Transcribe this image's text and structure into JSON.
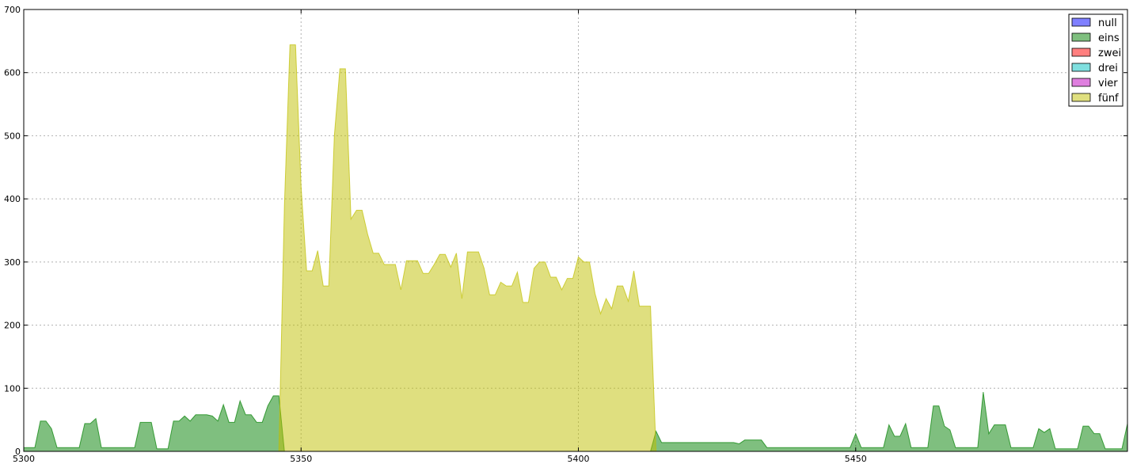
{
  "chart_data": {
    "type": "area",
    "title": "",
    "xlabel": "",
    "ylabel": "",
    "xlim": [
      5300,
      5499
    ],
    "ylim": [
      0,
      700
    ],
    "x_ticks": [
      "5300",
      "5350",
      "5400",
      "5450"
    ],
    "y_ticks": [
      "0",
      "100",
      "200",
      "300",
      "400",
      "500",
      "600",
      "700"
    ],
    "grid": true,
    "legend_position": "top-right",
    "series": [
      {
        "name": "null",
        "color": "#0000ff",
        "values": [
          [
            5300,
            0
          ],
          [
            5499,
            0
          ]
        ]
      },
      {
        "name": "eins",
        "color": "#008000",
        "values": [
          [
            5300,
            6
          ],
          [
            5302,
            6
          ],
          [
            5303,
            48
          ],
          [
            5304,
            48
          ],
          [
            5305,
            36
          ],
          [
            5306,
            6
          ],
          [
            5310,
            6
          ],
          [
            5311,
            44
          ],
          [
            5312,
            44
          ],
          [
            5313,
            52
          ],
          [
            5314,
            6
          ],
          [
            5320,
            6
          ],
          [
            5321,
            46
          ],
          [
            5323,
            46
          ],
          [
            5324,
            4
          ],
          [
            5326,
            4
          ],
          [
            5327,
            48
          ],
          [
            5328,
            48
          ],
          [
            5329,
            56
          ],
          [
            5330,
            48
          ],
          [
            5331,
            58
          ],
          [
            5333,
            58
          ],
          [
            5334,
            56
          ],
          [
            5335,
            48
          ],
          [
            5336,
            74
          ],
          [
            5337,
            46
          ],
          [
            5338,
            46
          ],
          [
            5339,
            80
          ],
          [
            5340,
            58
          ],
          [
            5341,
            58
          ],
          [
            5342,
            46
          ],
          [
            5343,
            46
          ],
          [
            5344,
            72
          ],
          [
            5345,
            88
          ],
          [
            5346,
            88
          ],
          [
            5347,
            0
          ],
          [
            5413,
            0
          ],
          [
            5414,
            32
          ],
          [
            5415,
            14
          ],
          [
            5428,
            14
          ],
          [
            5429,
            12
          ],
          [
            5430,
            18
          ],
          [
            5433,
            18
          ],
          [
            5434,
            6
          ],
          [
            5449,
            6
          ],
          [
            5450,
            28
          ],
          [
            5451,
            6
          ],
          [
            5455,
            6
          ],
          [
            5456,
            42
          ],
          [
            5457,
            24
          ],
          [
            5458,
            24
          ],
          [
            5459,
            44
          ],
          [
            5460,
            6
          ],
          [
            5463,
            6
          ],
          [
            5464,
            72
          ],
          [
            5465,
            72
          ],
          [
            5466,
            40
          ],
          [
            5467,
            34
          ],
          [
            5468,
            6
          ],
          [
            5472,
            6
          ],
          [
            5473,
            94
          ],
          [
            5474,
            28
          ],
          [
            5475,
            42
          ],
          [
            5477,
            42
          ],
          [
            5478,
            6
          ],
          [
            5482,
            6
          ],
          [
            5483,
            36
          ],
          [
            5484,
            30
          ],
          [
            5485,
            36
          ],
          [
            5486,
            4
          ],
          [
            5490,
            4
          ],
          [
            5491,
            40
          ],
          [
            5492,
            40
          ],
          [
            5493,
            28
          ],
          [
            5494,
            28
          ],
          [
            5495,
            4
          ],
          [
            5498,
            4
          ],
          [
            5499,
            44
          ]
        ]
      },
      {
        "name": "zwei",
        "color": "#ff0000",
        "values": [
          [
            5300,
            0
          ],
          [
            5499,
            0
          ]
        ]
      },
      {
        "name": "drei",
        "color": "#00bfbf",
        "values": [
          [
            5300,
            0
          ],
          [
            5499,
            0
          ]
        ]
      },
      {
        "name": "vier",
        "color": "#bf00bf",
        "values": [
          [
            5300,
            0
          ],
          [
            5499,
            0
          ]
        ]
      },
      {
        "name": "fünf",
        "color": "#bfbf00",
        "values": [
          [
            5346,
            0
          ],
          [
            5347,
            390
          ],
          [
            5348,
            644
          ],
          [
            5349,
            644
          ],
          [
            5350,
            420
          ],
          [
            5351,
            286
          ],
          [
            5352,
            286
          ],
          [
            5353,
            318
          ],
          [
            5354,
            262
          ],
          [
            5355,
            262
          ],
          [
            5356,
            500
          ],
          [
            5357,
            606
          ],
          [
            5358,
            606
          ],
          [
            5359,
            368
          ],
          [
            5360,
            382
          ],
          [
            5361,
            382
          ],
          [
            5362,
            344
          ],
          [
            5363,
            314
          ],
          [
            5364,
            314
          ],
          [
            5365,
            296
          ],
          [
            5366,
            296
          ],
          [
            5367,
            296
          ],
          [
            5368,
            256
          ],
          [
            5369,
            302
          ],
          [
            5370,
            302
          ],
          [
            5371,
            302
          ],
          [
            5372,
            282
          ],
          [
            5373,
            282
          ],
          [
            5374,
            296
          ],
          [
            5375,
            312
          ],
          [
            5376,
            312
          ],
          [
            5377,
            292
          ],
          [
            5378,
            314
          ],
          [
            5379,
            242
          ],
          [
            5380,
            316
          ],
          [
            5381,
            316
          ],
          [
            5382,
            316
          ],
          [
            5383,
            290
          ],
          [
            5384,
            248
          ],
          [
            5385,
            248
          ],
          [
            5386,
            268
          ],
          [
            5387,
            262
          ],
          [
            5388,
            262
          ],
          [
            5389,
            284
          ],
          [
            5390,
            236
          ],
          [
            5391,
            236
          ],
          [
            5392,
            290
          ],
          [
            5393,
            300
          ],
          [
            5394,
            300
          ],
          [
            5395,
            276
          ],
          [
            5396,
            276
          ],
          [
            5397,
            256
          ],
          [
            5398,
            274
          ],
          [
            5399,
            274
          ],
          [
            5400,
            308
          ],
          [
            5401,
            300
          ],
          [
            5402,
            300
          ],
          [
            5403,
            250
          ],
          [
            5404,
            218
          ],
          [
            5405,
            242
          ],
          [
            5406,
            226
          ],
          [
            5407,
            262
          ],
          [
            5408,
            262
          ],
          [
            5409,
            238
          ],
          [
            5410,
            286
          ],
          [
            5411,
            230
          ],
          [
            5412,
            230
          ],
          [
            5413,
            230
          ],
          [
            5414,
            0
          ]
        ]
      }
    ]
  }
}
